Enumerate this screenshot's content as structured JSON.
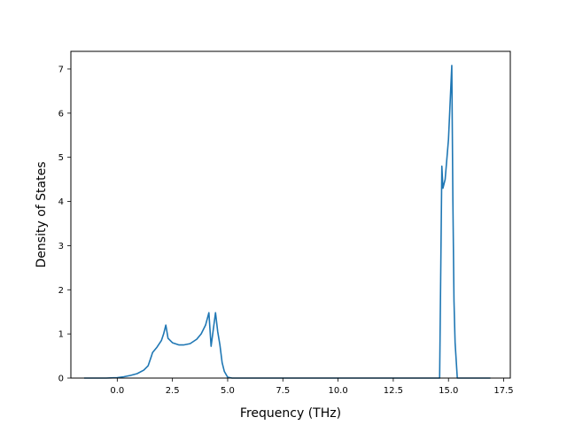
{
  "chart_data": {
    "type": "line",
    "title": "",
    "xlabel": "Frequency (THz)",
    "ylabel": "Density of States",
    "xlim": [
      -2.1,
      17.8
    ],
    "ylim": [
      0,
      7.4
    ],
    "xticks": [
      0.0,
      2.5,
      5.0,
      7.5,
      10.0,
      12.5,
      15.0,
      17.5
    ],
    "xtick_labels": [
      "0.0",
      "2.5",
      "5.0",
      "7.5",
      "10.0",
      "12.5",
      "15.0",
      "17.5"
    ],
    "yticks": [
      0,
      1,
      2,
      3,
      4,
      5,
      6,
      7
    ],
    "ytick_labels": [
      "0",
      "1",
      "2",
      "3",
      "4",
      "5",
      "6",
      "7"
    ],
    "grid": false,
    "color": "#1f77b4",
    "series": [
      {
        "x": [
          -1.5,
          -1.0,
          -0.5,
          0.0,
          0.3,
          0.6,
          0.9,
          1.2,
          1.4,
          1.55,
          1.6,
          1.8,
          2.0,
          2.1,
          2.2,
          2.3,
          2.5,
          2.8,
          3.0,
          3.3,
          3.6,
          3.8,
          4.0,
          4.15,
          4.25,
          4.35,
          4.45,
          4.55,
          4.65,
          4.75,
          4.85,
          5.0,
          5.2,
          6.0,
          8.0,
          10.0,
          12.0,
          14.0,
          14.6,
          14.7,
          14.75,
          14.85,
          15.0,
          15.15,
          15.2,
          15.25,
          15.3,
          15.4,
          16.0,
          16.9
        ],
        "y": [
          0,
          0,
          0,
          0.01,
          0.03,
          0.06,
          0.1,
          0.18,
          0.28,
          0.5,
          0.58,
          0.7,
          0.85,
          1.0,
          1.2,
          0.9,
          0.8,
          0.75,
          0.75,
          0.78,
          0.88,
          1.0,
          1.2,
          1.48,
          0.72,
          1.1,
          1.48,
          1.05,
          0.75,
          0.35,
          0.15,
          0.02,
          0,
          0,
          0,
          0,
          0,
          0,
          0,
          4.8,
          4.3,
          4.5,
          5.4,
          7.08,
          4.0,
          1.75,
          0.8,
          0,
          0,
          0
        ]
      }
    ]
  }
}
